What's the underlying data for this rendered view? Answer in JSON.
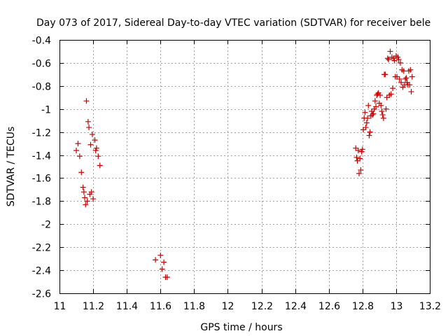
{
  "chart_data": {
    "type": "scatter",
    "title": "Day 073 of 2017, Sidereal Day-to-day VTEC variation (SDTVAR) for receiver bele",
    "xlabel": "GPS time / hours",
    "ylabel": "SDTVAR / TECUs",
    "xlim": [
      11,
      13.2
    ],
    "ylim": [
      -2.6,
      -0.4
    ],
    "xticks": [
      "11",
      "11.2",
      "11.4",
      "11.6",
      "11.8",
      "12",
      "12.2",
      "12.4",
      "12.6",
      "12.8",
      "13",
      "13.2"
    ],
    "yticks": [
      "-0.4",
      "-0.6",
      "-0.8",
      "-1",
      "-1.2",
      "-1.4",
      "-1.6",
      "-1.8",
      "-2",
      "-2.2",
      "-2.4",
      "-2.6"
    ],
    "grid": true,
    "series": [
      {
        "name": "SDTVAR",
        "color": "#cc0000",
        "marker": "plus",
        "points": [
          [
            11.1,
            -1.36
          ],
          [
            11.11,
            -1.3
          ],
          [
            11.12,
            -1.41
          ],
          [
            11.13,
            -1.55
          ],
          [
            11.14,
            -1.68
          ],
          [
            11.145,
            -1.72
          ],
          [
            11.15,
            -1.77
          ],
          [
            11.155,
            -1.83
          ],
          [
            11.16,
            -0.93
          ],
          [
            11.165,
            -1.8
          ],
          [
            11.17,
            -1.11
          ],
          [
            11.175,
            -1.16
          ],
          [
            11.18,
            -1.74
          ],
          [
            11.185,
            -1.31
          ],
          [
            11.19,
            -1.72
          ],
          [
            11.195,
            -1.22
          ],
          [
            11.2,
            -1.78
          ],
          [
            11.21,
            -1.27
          ],
          [
            11.215,
            -1.36
          ],
          [
            11.22,
            -1.34
          ],
          [
            11.23,
            -1.41
          ],
          [
            11.24,
            -1.49
          ],
          [
            11.57,
            -2.31
          ],
          [
            11.6,
            -2.27
          ],
          [
            11.61,
            -2.39
          ],
          [
            11.62,
            -2.33
          ],
          [
            11.63,
            -2.46
          ],
          [
            11.64,
            -2.46
          ],
          [
            12.76,
            -1.34
          ],
          [
            12.765,
            -1.42
          ],
          [
            12.77,
            -1.45
          ],
          [
            12.775,
            -1.36
          ],
          [
            12.78,
            -1.56
          ],
          [
            12.785,
            -1.43
          ],
          [
            12.79,
            -1.53
          ],
          [
            12.795,
            -1.37
          ],
          [
            12.8,
            -1.35
          ],
          [
            12.805,
            -1.18
          ],
          [
            12.81,
            -1.08
          ],
          [
            12.815,
            -1.03
          ],
          [
            12.82,
            -1.16
          ],
          [
            12.825,
            -1.12
          ],
          [
            12.83,
            -1.08
          ],
          [
            12.835,
            -0.97
          ],
          [
            12.84,
            -1.23
          ],
          [
            12.845,
            -1.2
          ],
          [
            12.85,
            -1.06
          ],
          [
            12.855,
            -1.02
          ],
          [
            12.86,
            -1.05
          ],
          [
            12.865,
            -1.04
          ],
          [
            12.87,
            -1.0
          ],
          [
            12.875,
            -0.93
          ],
          [
            12.88,
            -0.98
          ],
          [
            12.885,
            -0.88
          ],
          [
            12.89,
            -0.87
          ],
          [
            12.895,
            -0.86
          ],
          [
            12.9,
            -0.95
          ],
          [
            12.905,
            -0.88
          ],
          [
            12.91,
            -0.97
          ],
          [
            12.915,
            -1.02
          ],
          [
            12.92,
            -1.05
          ],
          [
            12.925,
            -1.08
          ],
          [
            12.93,
            -0.7
          ],
          [
            12.935,
            -0.7
          ],
          [
            12.94,
            -1.0
          ],
          [
            12.945,
            -0.9
          ],
          [
            12.95,
            -0.56
          ],
          [
            12.955,
            -0.57
          ],
          [
            12.96,
            -0.88
          ],
          [
            12.965,
            -0.5
          ],
          [
            12.97,
            -0.87
          ],
          [
            12.975,
            -0.55
          ],
          [
            12.98,
            -0.82
          ],
          [
            12.985,
            -0.56
          ],
          [
            12.99,
            -0.58
          ],
          [
            12.995,
            -0.72
          ],
          [
            13.0,
            -0.54
          ],
          [
            13.005,
            -0.72
          ],
          [
            13.01,
            -0.55
          ],
          [
            13.015,
            -0.57
          ],
          [
            13.02,
            -0.74
          ],
          [
            13.025,
            -0.6
          ],
          [
            13.03,
            -0.77
          ],
          [
            13.035,
            -0.66
          ],
          [
            13.04,
            -0.81
          ],
          [
            13.045,
            -0.67
          ],
          [
            13.05,
            -0.79
          ],
          [
            13.055,
            -0.74
          ],
          [
            13.06,
            -0.73
          ],
          [
            13.065,
            -0.77
          ],
          [
            13.07,
            -0.79
          ],
          [
            13.075,
            -0.67
          ],
          [
            13.08,
            -0.79
          ],
          [
            13.085,
            -0.66
          ],
          [
            13.09,
            -0.85
          ],
          [
            13.095,
            -0.72
          ]
        ]
      }
    ]
  }
}
